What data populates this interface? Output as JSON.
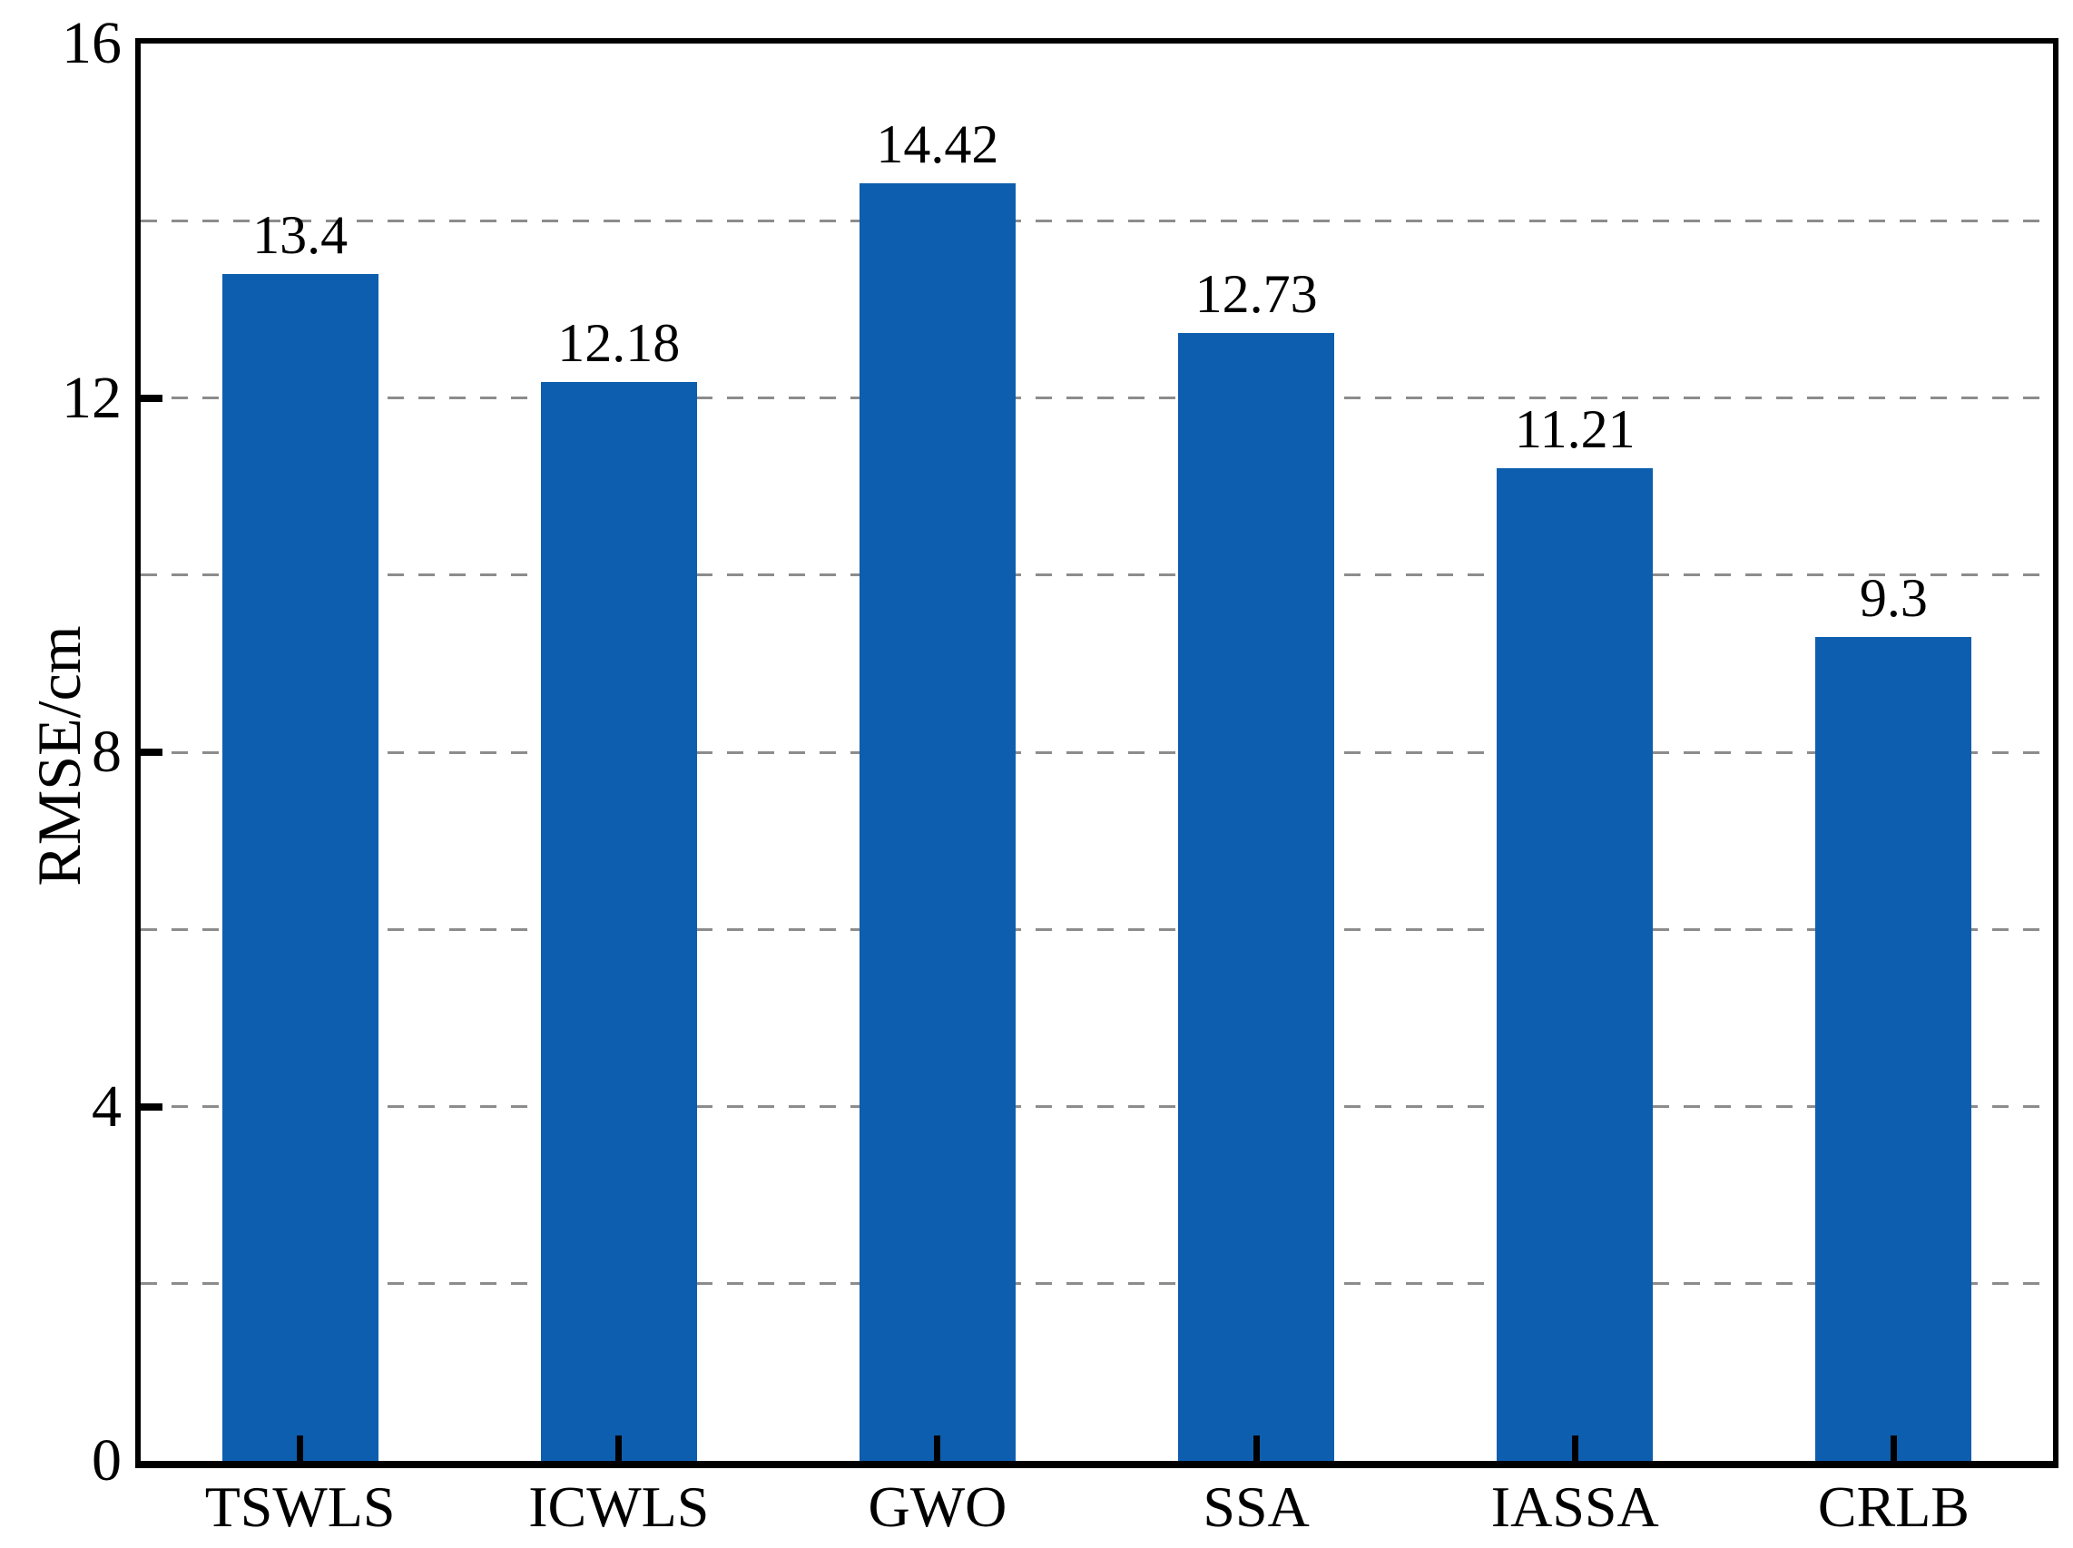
{
  "chart_data": {
    "type": "bar",
    "title": "",
    "xlabel": "",
    "ylabel": "RMSE/cm",
    "categories": [
      "TSWLS",
      "ICWLS",
      "GWO",
      "SSA",
      "IASSA",
      "CRLB"
    ],
    "values": [
      13.4,
      12.18,
      14.42,
      12.73,
      11.21,
      9.3
    ],
    "value_labels": [
      "13.4",
      "12.18",
      "14.42",
      "12.73",
      "11.21",
      "9.3"
    ],
    "ylim": [
      0,
      16
    ],
    "ytick_values": [
      0,
      4,
      8,
      12,
      16
    ],
    "ytick_labels": [
      "0",
      "4",
      "8",
      "12",
      "16"
    ],
    "gridline_values": [
      2,
      4,
      6,
      8,
      10,
      12,
      14
    ],
    "grid": "horizontal dashed",
    "legend_position": "none",
    "bar_color": "#0d5eae",
    "grid_color": "#8c8c8c",
    "axis_color": "#000000",
    "text_color": "#000000"
  }
}
